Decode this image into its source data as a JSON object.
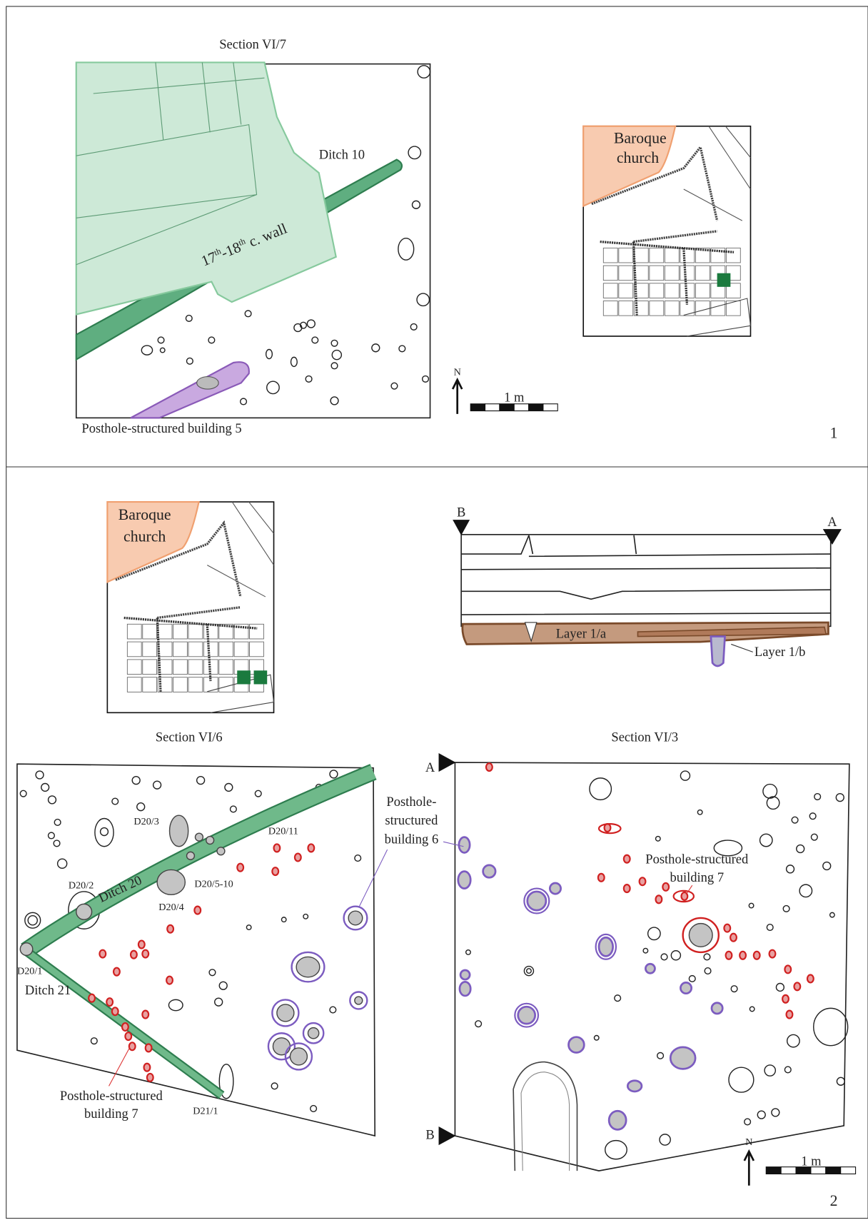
{
  "panels": [
    {
      "title": "Section VI/7",
      "labels": {
        "ditch": "Ditch 10",
        "wall": [
          "17",
          "th",
          "-18",
          "th",
          " c. wall"
        ],
        "building": "Posthole-structured building 5"
      },
      "inset": [
        "Baroque",
        "church"
      ],
      "north": "N",
      "scale": "1 m",
      "number": "1"
    },
    {
      "inset": [
        "Baroque",
        "church"
      ],
      "profile": {
        "left": "B",
        "right": "A",
        "layer_a": "Layer 1/a",
        "layer_b": "Layer 1/b"
      },
      "plan_left": {
        "title": "Section VI/6",
        "labels": [
          "D20/3",
          "D20/11",
          "D20/2",
          "Ditch 20",
          "D20/5-10",
          "D20/4",
          "D20/1",
          "Ditch 21",
          "D21/1"
        ],
        "building": [
          "Posthole-structured",
          "building 7"
        ]
      },
      "plan_right": {
        "title": "Section VI/3",
        "top": "A",
        "bottom": "B",
        "building_6": [
          "Posthole-",
          "structured",
          "building 6"
        ],
        "building_7": [
          "Posthole-structured",
          "building 7"
        ]
      },
      "north": "N",
      "scale": "1 m",
      "number": "2"
    }
  ]
}
